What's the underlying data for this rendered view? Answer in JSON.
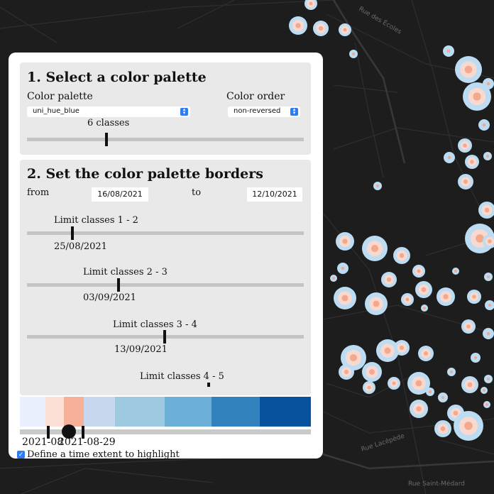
{
  "map": {
    "street_labels": [
      "Rue des Écoles",
      "Rue Lacépède",
      "Rue Saint-Médard"
    ]
  },
  "panel": {
    "section1": {
      "heading": "1. Select a color palette",
      "palette_label": "Color palette",
      "palette_value": "uni_hue_blue",
      "order_label": "Color order",
      "order_value": "non-reversed",
      "classes_label": "6 classes",
      "classes_fraction": 0.29
    },
    "section2": {
      "heading": "2. Set the color palette borders",
      "from_label": "from",
      "from_value": "16/08/2021",
      "to_label": "to",
      "to_value": "12/10/2021",
      "limits": [
        {
          "label": "Limit classes 1 - 2",
          "date": "25/08/2021"
        },
        {
          "label": "Limit classes 2 - 3",
          "date": "03/09/2021"
        },
        {
          "label": "Limit classes 3 - 4",
          "date": "13/09/2021"
        },
        {
          "label": "Limit classes 4 - 5",
          "date": ""
        }
      ]
    },
    "colorbar": {
      "colors": [
        "#eaf0fd",
        "#fde0d5",
        "#f7b198",
        "#c8d9ef",
        "#9ecae1",
        "#6baed6",
        "#3182bd",
        "#08519c"
      ],
      "highlighted": [
        1,
        2
      ]
    },
    "timeline": {
      "start_label": "2021-08",
      "end_label": "2021-08-29",
      "highlight_checkbox_checked": true,
      "highlight_label": "Define a time extent to highlight"
    }
  }
}
